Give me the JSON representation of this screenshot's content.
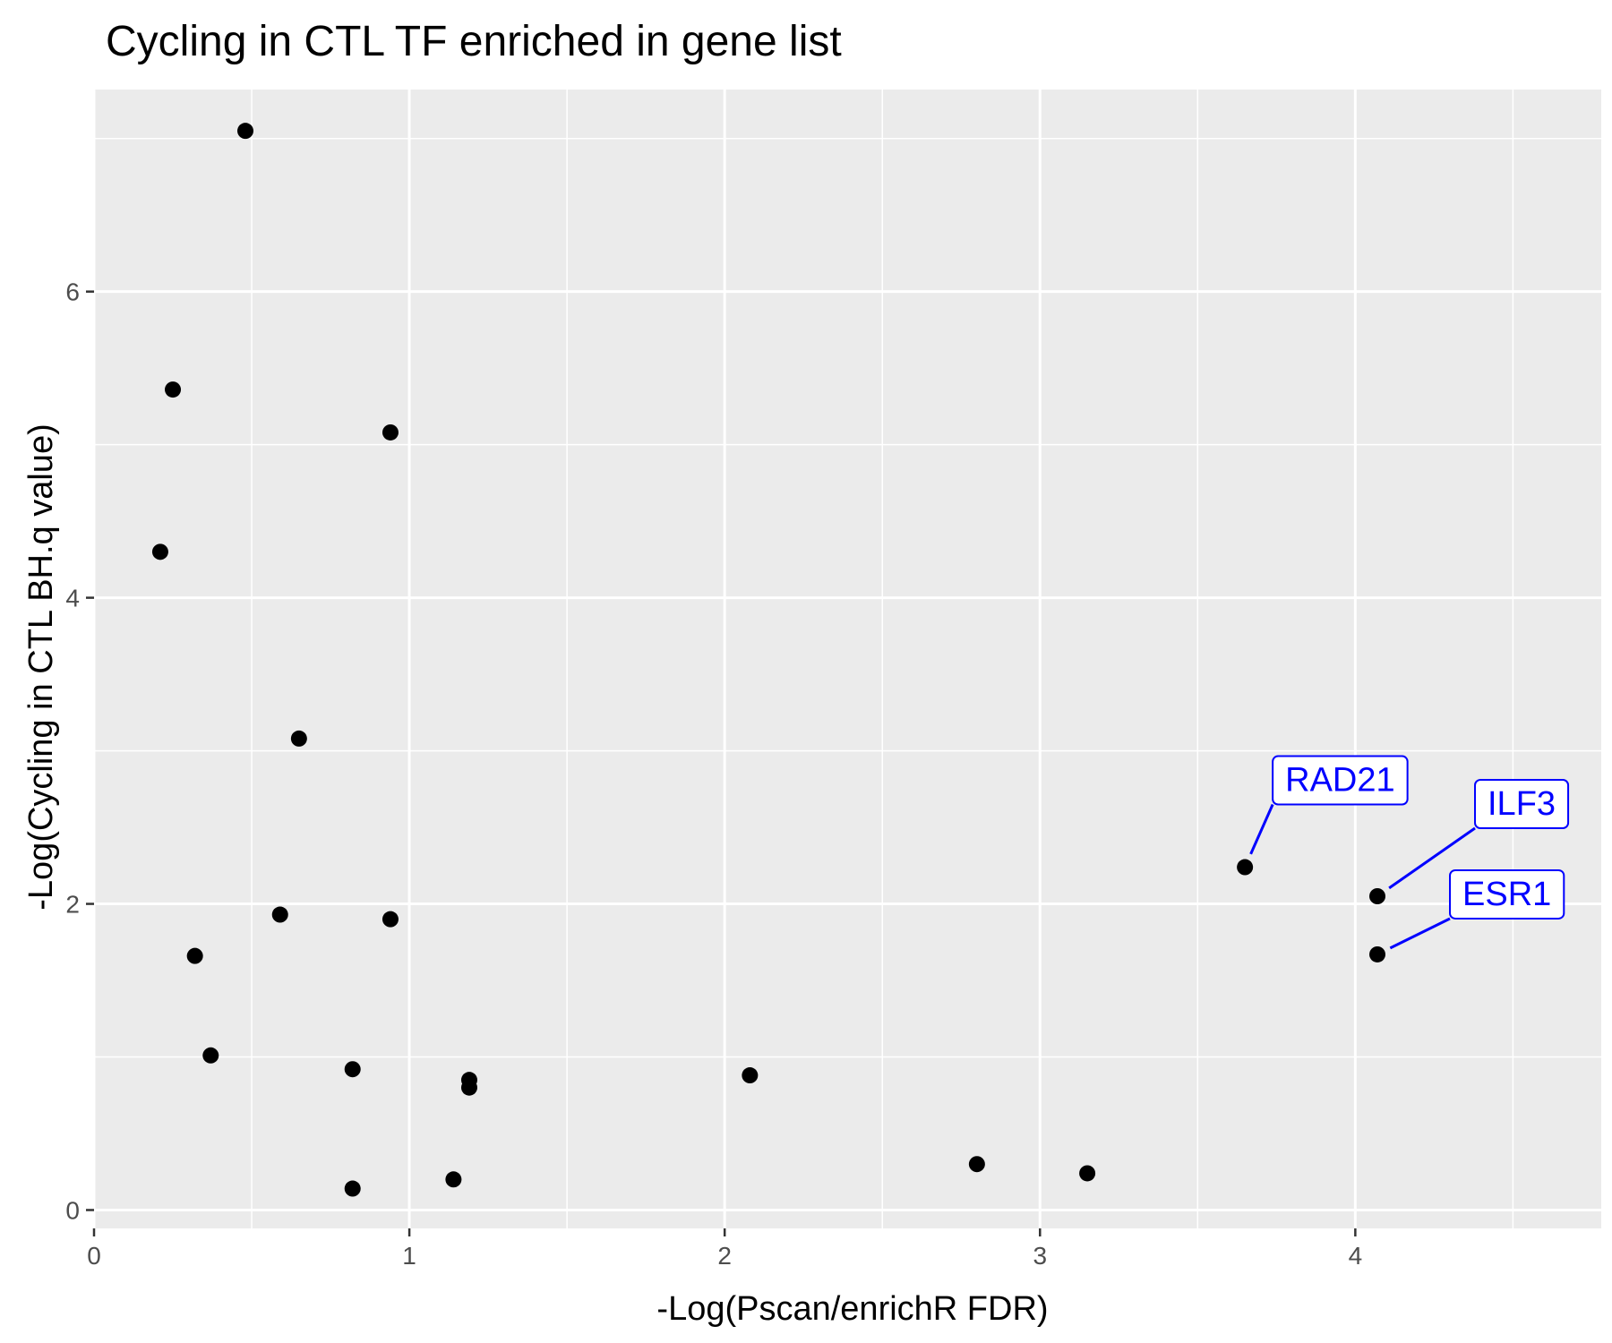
{
  "chart_data": {
    "type": "scatter",
    "title": "Cycling in CTL TF enriched in gene list",
    "xlabel": "-Log(Pscan/enrichR FDR)",
    "ylabel": "-Log(Cycling in CTL BH.q value)",
    "xlim": [
      0,
      4.78
    ],
    "ylim": [
      -0.12,
      7.32
    ],
    "x_ticks": [
      0,
      1,
      2,
      3,
      4
    ],
    "y_ticks": [
      0,
      2,
      4,
      6
    ],
    "grid": true,
    "legend": "none",
    "colors": {
      "panel_background": "#ebebeb",
      "grid": "#ffffff",
      "point": "#000000",
      "label": "#0000ff"
    },
    "points": [
      {
        "x": 0.48,
        "y": 7.05
      },
      {
        "x": 0.25,
        "y": 5.36
      },
      {
        "x": 0.94,
        "y": 5.08
      },
      {
        "x": 0.21,
        "y": 4.3
      },
      {
        "x": 0.65,
        "y": 3.08
      },
      {
        "x": 0.59,
        "y": 1.93
      },
      {
        "x": 0.94,
        "y": 1.9
      },
      {
        "x": 0.32,
        "y": 1.66
      },
      {
        "x": 0.37,
        "y": 1.01
      },
      {
        "x": 0.82,
        "y": 0.92
      },
      {
        "x": 1.19,
        "y": 0.85
      },
      {
        "x": 1.19,
        "y": 0.8
      },
      {
        "x": 2.08,
        "y": 0.88
      },
      {
        "x": 0.82,
        "y": 0.14
      },
      {
        "x": 1.14,
        "y": 0.2
      },
      {
        "x": 2.8,
        "y": 0.3
      },
      {
        "x": 3.15,
        "y": 0.24
      },
      {
        "x": 3.65,
        "y": 2.24
      },
      {
        "x": 4.07,
        "y": 2.05
      },
      {
        "x": 4.07,
        "y": 1.67
      }
    ],
    "annotations": [
      {
        "text": "RAD21",
        "x": 3.65,
        "y": 2.24
      },
      {
        "text": "ILF3",
        "x": 4.07,
        "y": 2.05
      },
      {
        "text": "ESR1",
        "x": 4.07,
        "y": 1.67
      }
    ]
  }
}
